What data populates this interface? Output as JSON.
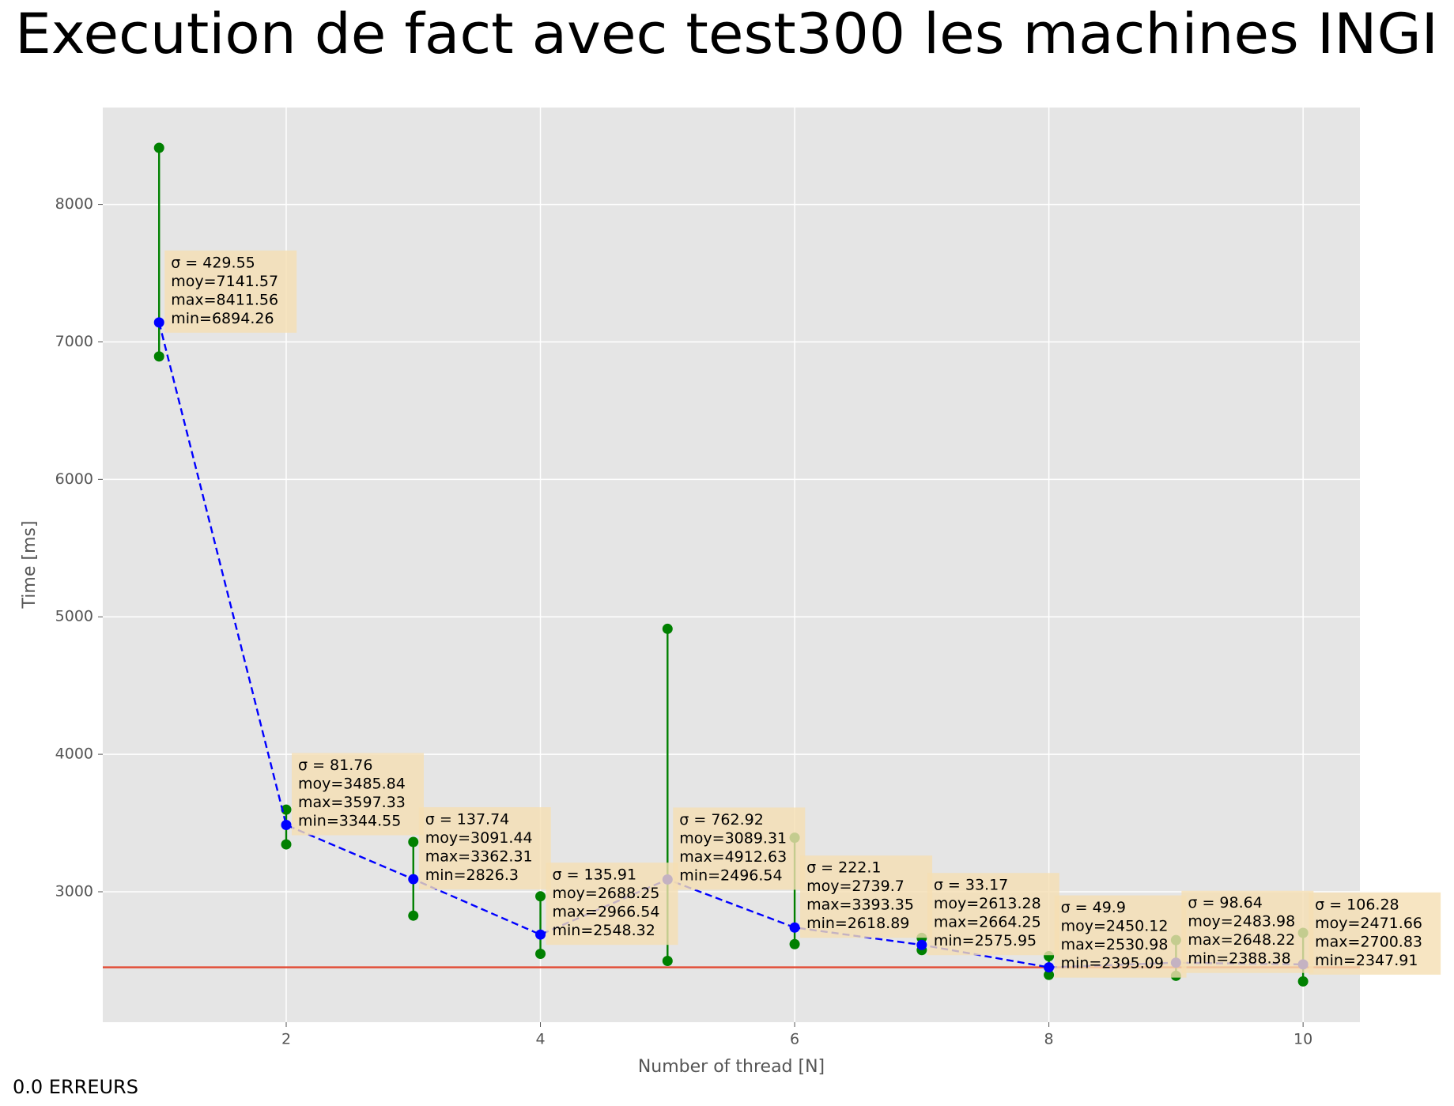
{
  "chart_data": {
    "type": "errorbar-line",
    "title": "Execution de fact avec test300 les machines INGI",
    "x_label": "Number of thread [N]",
    "y_label": "Time [ms]",
    "footer": "0.0 ERREURS",
    "x": [
      1,
      2,
      3,
      4,
      5,
      6,
      7,
      8,
      9,
      10
    ],
    "values": [
      7141.57,
      3485.84,
      3091.44,
      2688.25,
      3089.31,
      2739.7,
      2613.28,
      2450.12,
      2483.98,
      2471.66
    ],
    "color": "#0000ff",
    "max": [
      8411.56,
      3597.33,
      3362.31,
      2966.54,
      4912.63,
      3393.35,
      2664.25,
      2530.98,
      2648.22,
      2700.83
    ],
    "min": [
      6894.26,
      3344.55,
      2826.3,
      2548.32,
      2496.54,
      2618.89,
      2575.95,
      2395.09,
      2388.38,
      2347.91
    ],
    "error_color": "#008000",
    "annotations": [
      [
        "σ = 429.55",
        "moy=7141.57",
        "max=8411.56",
        "min=6894.26"
      ],
      [
        "σ = 81.76",
        "moy=3485.84",
        "max=3597.33",
        "min=3344.55"
      ],
      [
        "σ = 137.74",
        "moy=3091.44",
        "max=3362.31",
        "min=2826.3"
      ],
      [
        "σ = 135.91",
        "moy=2688.25",
        "max=2966.54",
        "min=2548.32"
      ],
      [
        "σ = 762.92",
        "moy=3089.31",
        "max=4912.63",
        "min=2496.54"
      ],
      [
        "σ = 222.1",
        "moy=2739.7",
        "max=3393.35",
        "min=2618.89"
      ],
      [
        "σ = 33.17",
        "moy=2613.28",
        "max=2664.25",
        "min=2575.95"
      ],
      [
        "σ = 49.9",
        "moy=2450.12",
        "max=2530.98",
        "min=2395.09"
      ],
      [
        "σ = 98.64",
        "moy=2483.98",
        "max=2648.22",
        "min=2388.38"
      ],
      [
        "σ = 106.28",
        "moy=2471.66",
        "max=2700.83",
        "min=2347.91"
      ]
    ],
    "hline": {
      "value": 2450.12,
      "color": "#e24a33"
    },
    "xlim": [
      0.557,
      10.447
    ],
    "ylim": [
      2051,
      8705
    ],
    "xticks": [
      2,
      4,
      6,
      8,
      10
    ],
    "yticks": [
      3000,
      4000,
      5000,
      6000,
      7000,
      8000
    ],
    "grid": true
  }
}
